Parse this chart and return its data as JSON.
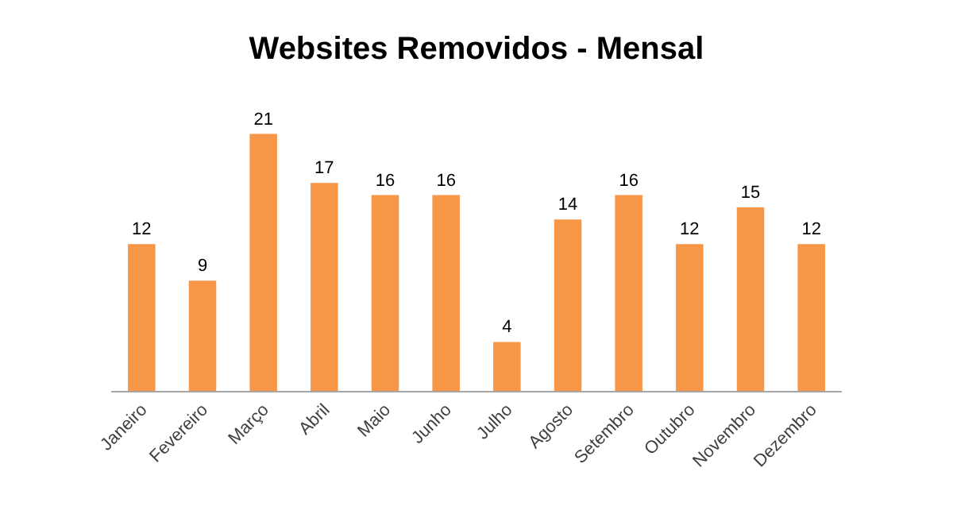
{
  "chart_data": {
    "type": "bar",
    "title": "Websites Removidos - Mensal",
    "categories": [
      "Janeiro",
      "Fevereiro",
      "Março",
      "Abril",
      "Maio",
      "Junho",
      "Julho",
      "Agosto",
      "Setembro",
      "Outubro",
      "Novembro",
      "Dezembro"
    ],
    "values": [
      12,
      9,
      21,
      17,
      16,
      16,
      4,
      14,
      16,
      12,
      15,
      12
    ],
    "color": "#f79646",
    "data_labels": true
  }
}
